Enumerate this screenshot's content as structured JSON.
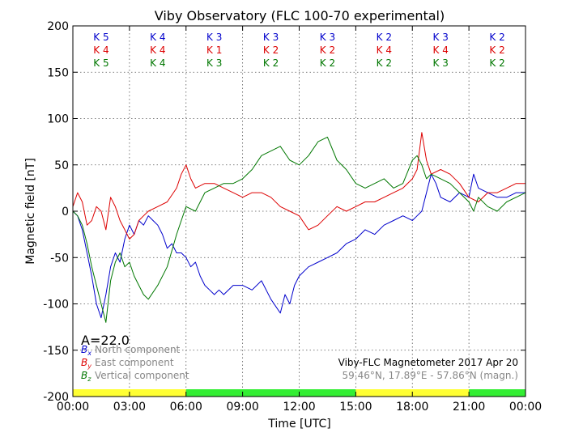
{
  "chart_data": {
    "type": "line",
    "title": "Viby Observatory (FLC 100-70 experimental)",
    "xlabel": "Time [UTC]",
    "ylabel": "Magnetic field [nT]",
    "ylim": [
      -200,
      200
    ],
    "yticks": [
      -200,
      -150,
      -100,
      -50,
      0,
      50,
      100,
      150,
      200
    ],
    "xlim_hours": [
      0,
      24
    ],
    "xtick_hours": [
      0,
      3,
      6,
      9,
      12,
      15,
      18,
      21,
      24
    ],
    "xtick_labels": [
      "00:00",
      "03:00",
      "06:00",
      "09:00",
      "12:00",
      "15:00",
      "18:00",
      "21:00",
      "00:00"
    ],
    "grid": true,
    "legend_position": "lower-left",
    "a_index": "A=22.0",
    "info_line1": "Viby-FLC Magnetometer 2017 Apr 20",
    "info_line2": "59.46°N, 17.89°E - 57.86°N (magn.)",
    "k_index_rows": [
      {
        "color": "#0000cc",
        "labels": [
          "K 5",
          "K 4",
          "K 3",
          "K 3",
          "K 3",
          "K 2",
          "K 3",
          "K 2"
        ]
      },
      {
        "color": "#dd0000",
        "labels": [
          "K 4",
          "K 4",
          "K 1",
          "K 2",
          "K 2",
          "K 4",
          "K 4",
          "K 2"
        ]
      },
      {
        "color": "#007700",
        "labels": [
          "K 5",
          "K 4",
          "K 3",
          "K 2",
          "K 2",
          "K 2",
          "K 3",
          "K 2"
        ]
      }
    ],
    "activity_bar": [
      {
        "start": 0,
        "end": 6,
        "color": "#ffff33"
      },
      {
        "start": 6,
        "end": 15,
        "color": "#33ee33"
      },
      {
        "start": 15,
        "end": 21,
        "color": "#ffff33"
      },
      {
        "start": 21,
        "end": 24,
        "color": "#33ee33"
      }
    ],
    "series": [
      {
        "name": "North component",
        "symbol": "B",
        "subscript": "x",
        "color": "#0000cc",
        "x": [
          0,
          0.25,
          0.5,
          0.75,
          1.0,
          1.25,
          1.5,
          1.75,
          2.0,
          2.25,
          2.5,
          2.75,
          3.0,
          3.25,
          3.5,
          3.75,
          4.0,
          4.25,
          4.5,
          4.75,
          5.0,
          5.25,
          5.5,
          5.75,
          6.0,
          6.25,
          6.5,
          6.75,
          7.0,
          7.25,
          7.5,
          7.75,
          8.0,
          8.5,
          9.0,
          9.5,
          10.0,
          10.5,
          11.0,
          11.25,
          11.5,
          11.75,
          12.0,
          12.5,
          13.0,
          13.5,
          14.0,
          14.5,
          15.0,
          15.5,
          16.0,
          16.5,
          17.0,
          17.5,
          18.0,
          18.25,
          18.5,
          18.75,
          19.0,
          19.25,
          19.5,
          20.0,
          20.5,
          21.0,
          21.25,
          21.5,
          22.0,
          22.5,
          23.0,
          23.5,
          24.0
        ],
        "values": [
          0,
          -5,
          -20,
          -45,
          -70,
          -100,
          -115,
          -90,
          -60,
          -45,
          -55,
          -30,
          -15,
          -25,
          -10,
          -15,
          -5,
          -10,
          -15,
          -25,
          -40,
          -35,
          -45,
          -45,
          -50,
          -60,
          -55,
          -70,
          -80,
          -85,
          -90,
          -85,
          -90,
          -80,
          -80,
          -85,
          -75,
          -95,
          -110,
          -90,
          -100,
          -80,
          -70,
          -60,
          -55,
          -50,
          -45,
          -35,
          -30,
          -20,
          -25,
          -15,
          -10,
          -5,
          -10,
          -5,
          0,
          20,
          40,
          30,
          15,
          10,
          20,
          15,
          40,
          25,
          20,
          15,
          15,
          20,
          20
        ]
      },
      {
        "name": "East component",
        "symbol": "B",
        "subscript": "y",
        "color": "#dd0000",
        "x": [
          0,
          0.25,
          0.5,
          0.75,
          1.0,
          1.25,
          1.5,
          1.75,
          2.0,
          2.25,
          2.5,
          2.75,
          3.0,
          3.25,
          3.5,
          3.75,
          4.0,
          4.5,
          5.0,
          5.5,
          5.75,
          6.0,
          6.25,
          6.5,
          7.0,
          7.5,
          8.0,
          8.5,
          9.0,
          9.5,
          10.0,
          10.5,
          11.0,
          11.5,
          12.0,
          12.5,
          13.0,
          13.5,
          14.0,
          14.5,
          15.0,
          15.5,
          16.0,
          16.5,
          17.0,
          17.5,
          18.0,
          18.25,
          18.5,
          18.75,
          19.0,
          19.5,
          20.0,
          20.5,
          21.0,
          21.5,
          22.0,
          22.5,
          23.0,
          23.5,
          24.0
        ],
        "values": [
          5,
          20,
          10,
          -15,
          -10,
          5,
          0,
          -20,
          15,
          5,
          -10,
          -20,
          -30,
          -25,
          -10,
          -5,
          0,
          5,
          10,
          25,
          40,
          50,
          35,
          25,
          30,
          30,
          25,
          20,
          15,
          20,
          20,
          15,
          5,
          0,
          -5,
          -20,
          -15,
          -5,
          5,
          0,
          5,
          10,
          10,
          15,
          20,
          25,
          35,
          45,
          85,
          55,
          40,
          45,
          40,
          30,
          15,
          10,
          20,
          20,
          25,
          30,
          30
        ]
      },
      {
        "name": "Vertical component",
        "symbol": "B",
        "subscript": "z",
        "color": "#007700",
        "x": [
          0,
          0.25,
          0.5,
          0.75,
          1.0,
          1.25,
          1.5,
          1.75,
          2.0,
          2.25,
          2.5,
          2.75,
          3.0,
          3.25,
          3.5,
          3.75,
          4.0,
          4.5,
          5.0,
          5.5,
          5.75,
          6.0,
          6.5,
          7.0,
          7.5,
          8.0,
          8.5,
          9.0,
          9.5,
          10.0,
          10.5,
          11.0,
          11.5,
          12.0,
          12.5,
          13.0,
          13.5,
          14.0,
          14.5,
          15.0,
          15.5,
          16.0,
          16.5,
          17.0,
          17.5,
          18.0,
          18.25,
          18.5,
          18.75,
          19.0,
          19.5,
          20.0,
          20.5,
          21.0,
          21.25,
          21.5,
          22.0,
          22.5,
          23.0,
          23.5,
          24.0
        ],
        "values": [
          0,
          -5,
          -15,
          -35,
          -60,
          -80,
          -100,
          -120,
          -75,
          -55,
          -45,
          -60,
          -55,
          -70,
          -80,
          -90,
          -95,
          -80,
          -60,
          -25,
          -10,
          5,
          0,
          20,
          25,
          30,
          30,
          35,
          45,
          60,
          65,
          70,
          55,
          50,
          60,
          75,
          80,
          55,
          45,
          30,
          25,
          30,
          35,
          25,
          30,
          55,
          60,
          50,
          35,
          40,
          35,
          30,
          20,
          10,
          0,
          15,
          5,
          0,
          10,
          15,
          20
        ]
      }
    ]
  }
}
